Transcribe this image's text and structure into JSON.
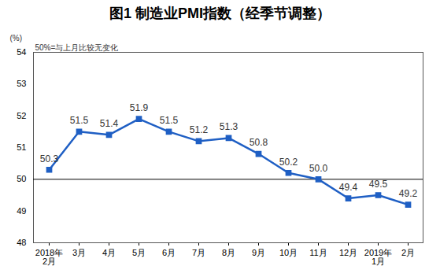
{
  "chart_data": {
    "type": "line",
    "title": "图1 制造业PMI指数（经季节调整）",
    "ylabel": "(%)",
    "annotation": "50%=与上月比较无变化",
    "baseline": 50,
    "categories": [
      "2018年\n2月",
      "3月",
      "4月",
      "5月",
      "6月",
      "7月",
      "8月",
      "9月",
      "10月",
      "11月",
      "12月",
      "2019年\n1月",
      "2月"
    ],
    "values": [
      50.3,
      51.5,
      51.4,
      51.9,
      51.5,
      51.2,
      51.3,
      50.8,
      50.2,
      50.0,
      49.4,
      49.5,
      49.2
    ],
    "value_labels": [
      "50.3",
      "51.5",
      "51.4",
      "51.9",
      "51.5",
      "51.2",
      "51.3",
      "50.8",
      "50.2",
      "50.0",
      "49.4",
      "49.5",
      "49.2"
    ],
    "color": "#1f5fc4",
    "marker": "square",
    "line_style": "solid",
    "ylim": [
      48,
      54
    ],
    "yticks": [
      48,
      49,
      50,
      51,
      52,
      53,
      54
    ],
    "grid": false,
    "data_labels": true
  }
}
